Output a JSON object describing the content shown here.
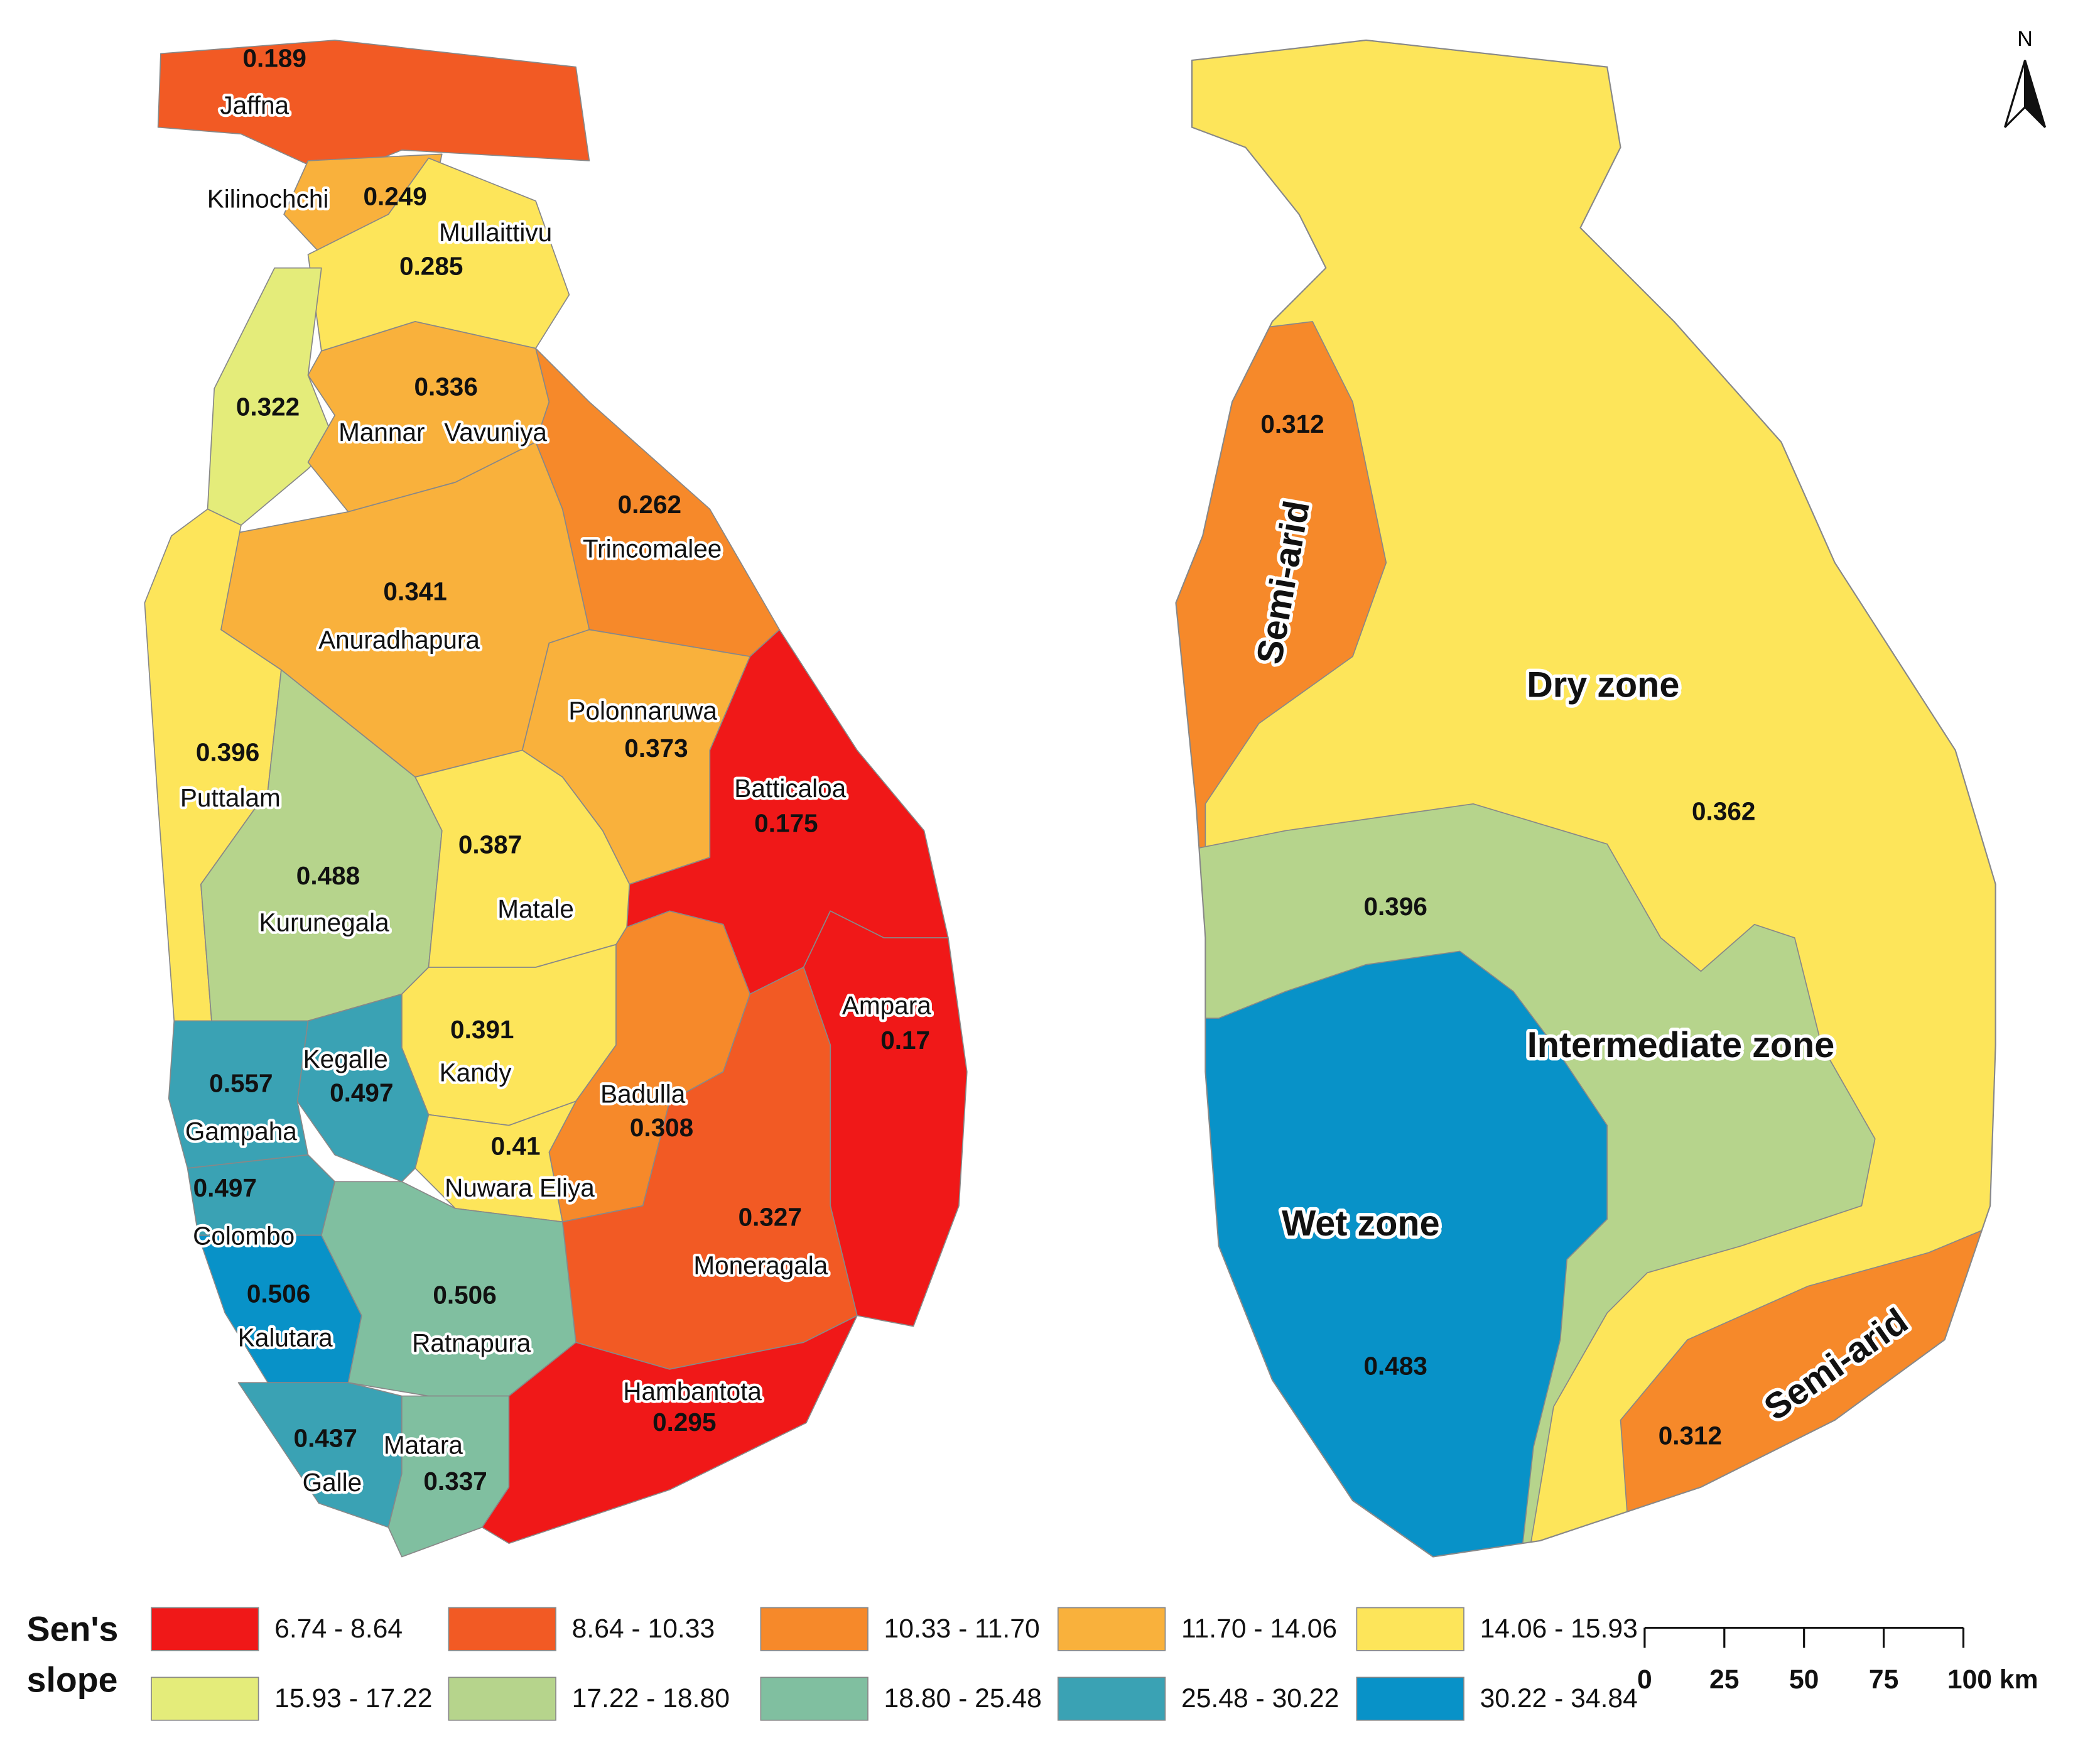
{
  "left_map": {
    "districts": [
      {
        "name": "Jaffna",
        "value": 0.189,
        "color": "#f25a24"
      },
      {
        "name": "Kilinochchi",
        "value": 0.249,
        "color": "#f9b13c"
      },
      {
        "name": "Mullaittivu",
        "value": 0.285,
        "color": "#fde55a"
      },
      {
        "name": "Mannar",
        "value": 0.322,
        "color": "#e4ec7a"
      },
      {
        "name": "Vavuniya",
        "value": 0.336,
        "color": "#f9b13c"
      },
      {
        "name": "Trincomalee",
        "value": 0.262,
        "color": "#f6892a"
      },
      {
        "name": "Anuradhapura",
        "value": 0.341,
        "color": "#f9b13c"
      },
      {
        "name": "Puttalam",
        "value": 0.396,
        "color": "#fde55a"
      },
      {
        "name": "Polonnaruwa",
        "value": 0.373,
        "color": "#f9b13c"
      },
      {
        "name": "Batticaloa",
        "value": 0.175,
        "color": "#f01818"
      },
      {
        "name": "Kurunegala",
        "value": 0.488,
        "color": "#b6d48c"
      },
      {
        "name": "Matale",
        "value": 0.387,
        "color": "#fde55a"
      },
      {
        "name": "Kandy",
        "value": 0.391,
        "color": "#fde55a"
      },
      {
        "name": "Badulla",
        "value": 0.308,
        "color": "#f6892a"
      },
      {
        "name": "Ampara",
        "value": 0.17,
        "color": "#f01818"
      },
      {
        "name": "Moneragala",
        "value": 0.327,
        "color": "#f25a24"
      },
      {
        "name": "Nuwara Eliya",
        "value": 0.41,
        "color": "#fde55a"
      },
      {
        "name": "Kegalle",
        "value": 0.497,
        "color": "#3aa2b4"
      },
      {
        "name": "Gampaha",
        "value": 0.557,
        "color": "#3aa2b4"
      },
      {
        "name": "Colombo",
        "value": 0.497,
        "color": "#3aa2b4"
      },
      {
        "name": "Kalutara",
        "value": 0.506,
        "color": "#0892c8"
      },
      {
        "name": "Ratnapura",
        "value": 0.506,
        "color": "#80bfa0"
      },
      {
        "name": "Galle",
        "value": 0.437,
        "color": "#3aa2b4"
      },
      {
        "name": "Matara",
        "value": 0.337,
        "color": "#80bfa0"
      },
      {
        "name": "Hambantota",
        "value": 0.295,
        "color": "#f01818"
      }
    ]
  },
  "right_map": {
    "zones": [
      {
        "name": "Dry zone",
        "value": 0.362,
        "color": "#fde55a"
      },
      {
        "name": "Semi-arid",
        "value": 0.312,
        "color": "#f6892a"
      },
      {
        "name": "Intermediate zone",
        "value": 0.396,
        "color": "#b6d48c"
      },
      {
        "name": "Wet zone",
        "value": 0.483,
        "color": "#0892c8"
      },
      {
        "name": "Semi-arid",
        "value": 0.312,
        "color": "#f6892a"
      }
    ]
  },
  "legend": {
    "title": [
      "Sen's",
      "slope"
    ],
    "classes": [
      {
        "label": "6.74 - 8.64",
        "color": "#f01818"
      },
      {
        "label": "8.64 - 10.33",
        "color": "#f25a24"
      },
      {
        "label": "10.33 - 11.70",
        "color": "#f6892a"
      },
      {
        "label": "11.70 - 14.06",
        "color": "#f9b13c"
      },
      {
        "label": "14.06 - 15.93",
        "color": "#fde55a"
      },
      {
        "label": "15.93 - 17.22",
        "color": "#e4ec7a"
      },
      {
        "label": "17.22 - 18.80",
        "color": "#b6d48c"
      },
      {
        "label": "18.80 - 25.48",
        "color": "#80bfa0"
      },
      {
        "label": "25.48 - 30.22",
        "color": "#3aa2b4"
      },
      {
        "label": "30.22 - 34.84",
        "color": "#0892c8"
      }
    ]
  },
  "scale_bar": {
    "ticks": [
      0,
      25,
      50,
      75,
      {
        "value": 100,
        "label": "100 km"
      }
    ]
  },
  "north_arrow": "N"
}
